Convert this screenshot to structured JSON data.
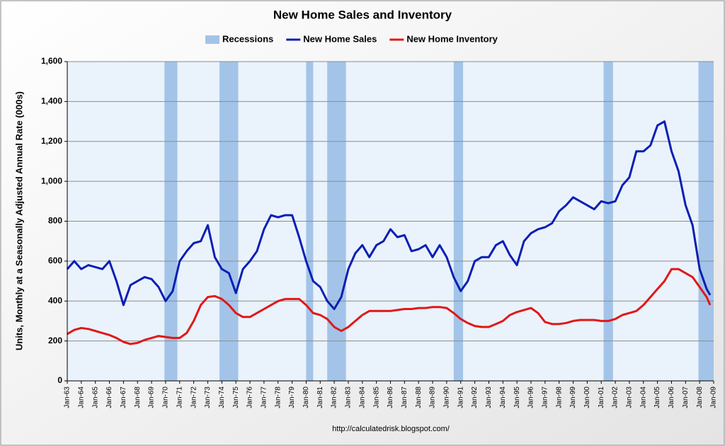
{
  "chart_data": {
    "type": "line",
    "title": "New Home Sales and Inventory",
    "y_label": "Units, Monthly at a Seasonally Adjusted Annual Rate (000s)",
    "source": "http://calculatedrisk.blogspot.com/",
    "grid": true,
    "legend": "top",
    "shaded_spans": {
      "name": "Recessions",
      "color": "#a3c4e8",
      "spans": [
        [
          "1969-12",
          "1970-11"
        ],
        [
          "1973-11",
          "1975-03"
        ],
        [
          "1980-01",
          "1980-07"
        ],
        [
          "1981-07",
          "1982-11"
        ],
        [
          "1990-07",
          "1991-03"
        ],
        [
          "2001-03",
          "2001-11"
        ],
        [
          "2007-12",
          "2009-01"
        ]
      ]
    },
    "x": [
      "1963-01",
      "1963-07",
      "1964-01",
      "1964-07",
      "1965-01",
      "1965-07",
      "1966-01",
      "1966-07",
      "1967-01",
      "1967-07",
      "1968-01",
      "1968-07",
      "1969-01",
      "1969-07",
      "1970-01",
      "1970-07",
      "1971-01",
      "1971-07",
      "1972-01",
      "1972-07",
      "1973-01",
      "1973-07",
      "1974-01",
      "1974-07",
      "1975-01",
      "1975-07",
      "1976-01",
      "1976-07",
      "1977-01",
      "1977-07",
      "1978-01",
      "1978-07",
      "1979-01",
      "1979-07",
      "1980-01",
      "1980-07",
      "1981-01",
      "1981-07",
      "1982-01",
      "1982-07",
      "1983-01",
      "1983-07",
      "1984-01",
      "1984-07",
      "1985-01",
      "1985-07",
      "1986-01",
      "1986-07",
      "1987-01",
      "1987-07",
      "1988-01",
      "1988-07",
      "1989-01",
      "1989-07",
      "1990-01",
      "1990-07",
      "1991-01",
      "1991-07",
      "1992-01",
      "1992-07",
      "1993-01",
      "1993-07",
      "1994-01",
      "1994-07",
      "1995-01",
      "1995-07",
      "1996-01",
      "1996-07",
      "1997-01",
      "1997-07",
      "1998-01",
      "1998-07",
      "1999-01",
      "1999-07",
      "2000-01",
      "2000-07",
      "2001-01",
      "2001-07",
      "2002-01",
      "2002-07",
      "2003-01",
      "2003-07",
      "2004-01",
      "2004-07",
      "2005-01",
      "2005-07",
      "2006-01",
      "2006-07",
      "2007-01",
      "2007-07",
      "2008-01",
      "2008-07",
      "2008-10"
    ],
    "series": [
      {
        "name": "New Home Sales",
        "color": "#0a1fb4",
        "values": [
          560,
          600,
          560,
          580,
          570,
          560,
          600,
          500,
          380,
          480,
          500,
          520,
          510,
          470,
          400,
          450,
          600,
          650,
          690,
          700,
          780,
          620,
          560,
          540,
          440,
          560,
          600,
          650,
          760,
          830,
          820,
          830,
          830,
          720,
          600,
          500,
          470,
          400,
          360,
          420,
          560,
          640,
          680,
          620,
          680,
          700,
          760,
          720,
          730,
          650,
          660,
          680,
          620,
          680,
          620,
          520,
          450,
          500,
          600,
          620,
          620,
          680,
          700,
          630,
          580,
          700,
          740,
          760,
          770,
          790,
          850,
          880,
          920,
          900,
          880,
          860,
          900,
          890,
          900,
          980,
          1020,
          1150,
          1150,
          1180,
          1280,
          1300,
          1150,
          1050,
          880,
          780,
          560,
          460,
          430
        ]
      },
      {
        "name": "New Home Inventory",
        "color": "#e01818",
        "values": [
          235,
          255,
          265,
          260,
          250,
          240,
          230,
          215,
          195,
          185,
          190,
          205,
          215,
          225,
          220,
          215,
          215,
          240,
          300,
          380,
          420,
          425,
          410,
          380,
          340,
          320,
          320,
          340,
          360,
          380,
          400,
          410,
          410,
          410,
          380,
          340,
          330,
          310,
          270,
          250,
          270,
          300,
          330,
          350,
          350,
          350,
          350,
          355,
          360,
          360,
          365,
          365,
          370,
          370,
          365,
          340,
          310,
          290,
          275,
          270,
          270,
          285,
          300,
          330,
          345,
          355,
          365,
          340,
          295,
          285,
          285,
          290,
          300,
          305,
          305,
          305,
          300,
          300,
          310,
          330,
          340,
          350,
          380,
          420,
          460,
          500,
          560,
          560,
          540,
          520,
          470,
          420,
          380
        ]
      }
    ],
    "xlim": [
      "1963-01",
      "2009-01"
    ],
    "xticks": [
      {
        "value": "1963-01",
        "label": "Jan-63"
      },
      {
        "value": "1964-01",
        "label": "Jan-64"
      },
      {
        "value": "1965-01",
        "label": "Jan-65"
      },
      {
        "value": "1966-01",
        "label": "Jan-66"
      },
      {
        "value": "1967-01",
        "label": "Jan-67"
      },
      {
        "value": "1968-01",
        "label": "Jan-68"
      },
      {
        "value": "1969-01",
        "label": "Jan-69"
      },
      {
        "value": "1970-01",
        "label": "Jan-70"
      },
      {
        "value": "1971-01",
        "label": "Jan-71"
      },
      {
        "value": "1972-01",
        "label": "Jan-72"
      },
      {
        "value": "1973-01",
        "label": "Jan-73"
      },
      {
        "value": "1974-01",
        "label": "Jan-74"
      },
      {
        "value": "1975-01",
        "label": "Jan-75"
      },
      {
        "value": "1976-01",
        "label": "Jan-76"
      },
      {
        "value": "1977-01",
        "label": "Jan-77"
      },
      {
        "value": "1978-01",
        "label": "Jan-78"
      },
      {
        "value": "1979-01",
        "label": "Jan-79"
      },
      {
        "value": "1980-01",
        "label": "Jan-80"
      },
      {
        "value": "1981-01",
        "label": "Jan-81"
      },
      {
        "value": "1982-01",
        "label": "Jan-82"
      },
      {
        "value": "1983-01",
        "label": "Jan-83"
      },
      {
        "value": "1984-01",
        "label": "Jan-84"
      },
      {
        "value": "1985-01",
        "label": "Jan-85"
      },
      {
        "value": "1986-01",
        "label": "Jan-86"
      },
      {
        "value": "1987-01",
        "label": "Jan-87"
      },
      {
        "value": "1988-01",
        "label": "Jan-88"
      },
      {
        "value": "1989-01",
        "label": "Jan-89"
      },
      {
        "value": "1990-01",
        "label": "Jan-90"
      },
      {
        "value": "1991-01",
        "label": "Jan-91"
      },
      {
        "value": "1992-01",
        "label": "Jan-92"
      },
      {
        "value": "1993-01",
        "label": "Jan-93"
      },
      {
        "value": "1994-01",
        "label": "Jan-94"
      },
      {
        "value": "1995-01",
        "label": "Jan-95"
      },
      {
        "value": "1996-01",
        "label": "Jan-96"
      },
      {
        "value": "1997-01",
        "label": "Jan-97"
      },
      {
        "value": "1998-01",
        "label": "Jan-98"
      },
      {
        "value": "1999-01",
        "label": "Jan-99"
      },
      {
        "value": "2000-01",
        "label": "Jan-00"
      },
      {
        "value": "2001-01",
        "label": "Jan-01"
      },
      {
        "value": "2002-01",
        "label": "Jan-02"
      },
      {
        "value": "2003-01",
        "label": "Jan-03"
      },
      {
        "value": "2004-01",
        "label": "Jan-04"
      },
      {
        "value": "2005-01",
        "label": "Jan-05"
      },
      {
        "value": "2006-01",
        "label": "Jan-06"
      },
      {
        "value": "2007-01",
        "label": "Jan-07"
      },
      {
        "value": "2008-01",
        "label": "Jan-08"
      },
      {
        "value": "2009-01",
        "label": "Jan-09"
      }
    ],
    "ylim": [
      0,
      1600
    ],
    "yticks": [
      0,
      200,
      400,
      600,
      800,
      {
        "value": 1000,
        "label": "1,000"
      },
      {
        "value": 1200,
        "label": "1,200"
      },
      {
        "value": 1400,
        "label": "1,400"
      },
      {
        "value": 1600,
        "label": "1,600"
      }
    ]
  }
}
